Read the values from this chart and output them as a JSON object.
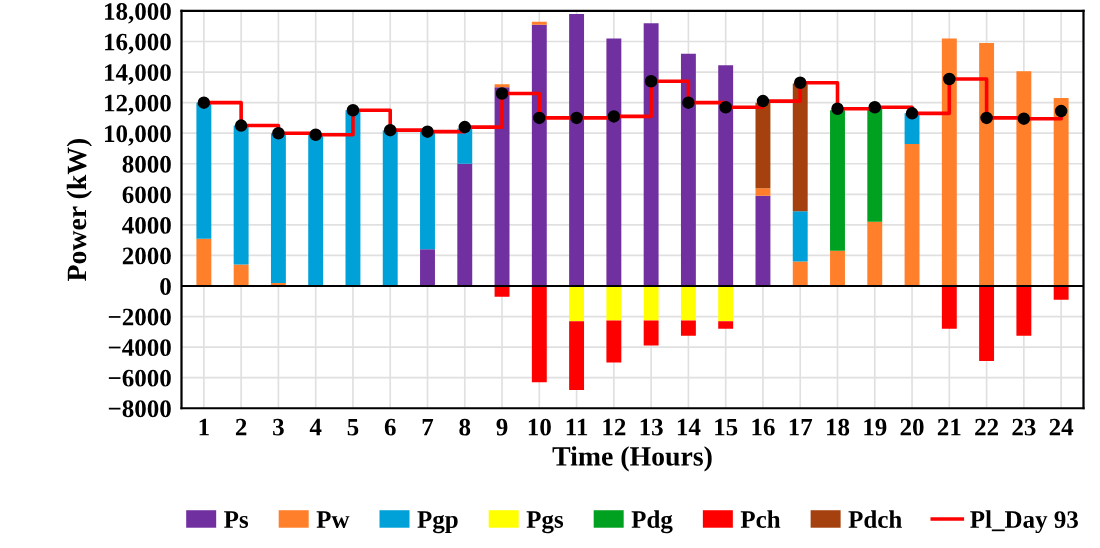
{
  "chart_data": {
    "type": "bar",
    "stacked": true,
    "xlabel": "Time (Hours)",
    "ylabel": "Power (kW)",
    "categories": [
      "1",
      "2",
      "3",
      "4",
      "5",
      "6",
      "7",
      "8",
      "9",
      "10",
      "11",
      "12",
      "13",
      "14",
      "15",
      "16",
      "17",
      "18",
      "19",
      "20",
      "21",
      "22",
      "23",
      "24"
    ],
    "series": [
      {
        "name": "Ps",
        "color": "#7030a0",
        "values": [
          null,
          null,
          null,
          null,
          null,
          null,
          2400,
          8000,
          13000,
          17100,
          17800,
          16200,
          17200,
          15200,
          14450,
          5900,
          null,
          null,
          null,
          null,
          null,
          null,
          null,
          null
        ]
      },
      {
        "name": "Pw",
        "color": "#ff7f2a",
        "values": [
          3100,
          1400,
          200,
          null,
          null,
          null,
          null,
          null,
          200,
          200,
          null,
          null,
          null,
          null,
          null,
          500,
          1600,
          2300,
          4200,
          9300,
          16200,
          15900,
          14050,
          12300
        ]
      },
      {
        "name": "Pgp",
        "color": "#00a0d8",
        "values": [
          8900,
          9100,
          9800,
          9900,
          11500,
          10200,
          7700,
          2300,
          null,
          null,
          null,
          null,
          null,
          null,
          null,
          null,
          3300,
          null,
          null,
          2000,
          null,
          null,
          null,
          null
        ]
      },
      {
        "name": "Pgs",
        "color": "#ffff00",
        "values": [
          null,
          null,
          null,
          null,
          null,
          null,
          null,
          null,
          null,
          null,
          -2300,
          -2250,
          -2250,
          -2250,
          -2300,
          null,
          null,
          null,
          null,
          null,
          null,
          null,
          null,
          null
        ]
      },
      {
        "name": "Pdg",
        "color": "#00a020",
        "values": [
          null,
          null,
          null,
          null,
          null,
          null,
          null,
          null,
          null,
          null,
          null,
          null,
          null,
          null,
          null,
          null,
          null,
          9200,
          7400,
          null,
          null,
          null,
          null,
          null
        ]
      },
      {
        "name": "Pch",
        "color": "#ff0000",
        "values": [
          null,
          null,
          null,
          null,
          null,
          null,
          null,
          null,
          -700,
          -6300,
          -4500,
          -2750,
          -1650,
          -1000,
          -500,
          null,
          null,
          null,
          null,
          null,
          -2800,
          -4900,
          -3250,
          -900
        ]
      },
      {
        "name": "Pdch",
        "color": "#a5410e",
        "values": [
          null,
          null,
          null,
          null,
          null,
          null,
          null,
          null,
          null,
          null,
          null,
          null,
          null,
          null,
          null,
          5600,
          8350,
          null,
          null,
          null,
          null,
          null,
          null,
          null
        ]
      },
      {
        "name": "Pl_Day 93",
        "type": "step",
        "marker": "circle",
        "color": "#ff0000",
        "values": [
          12000,
          10500,
          10000,
          9900,
          11500,
          10200,
          10100,
          10400,
          12600,
          11000,
          11000,
          11100,
          13400,
          12000,
          11700,
          12100,
          13300,
          11600,
          11700,
          11300,
          13550,
          11000,
          10950,
          11450
        ]
      }
    ],
    "ylim": [
      -8000,
      18000
    ],
    "yticks": [
      {
        "value": -8000,
        "label": "−8000"
      },
      {
        "value": -6000,
        "label": "−6000"
      },
      {
        "value": -4000,
        "label": "−4000"
      },
      {
        "value": -2000,
        "label": "−2000"
      },
      0,
      2000,
      4000,
      6000,
      8000,
      {
        "value": 10000,
        "label": "10,000"
      },
      {
        "value": 12000,
        "label": "12,000"
      },
      {
        "value": 14000,
        "label": "14,000"
      },
      {
        "value": 16000,
        "label": "16,000"
      },
      {
        "value": 18000,
        "label": "18,000"
      }
    ],
    "grid": true,
    "legend": "bottom"
  }
}
